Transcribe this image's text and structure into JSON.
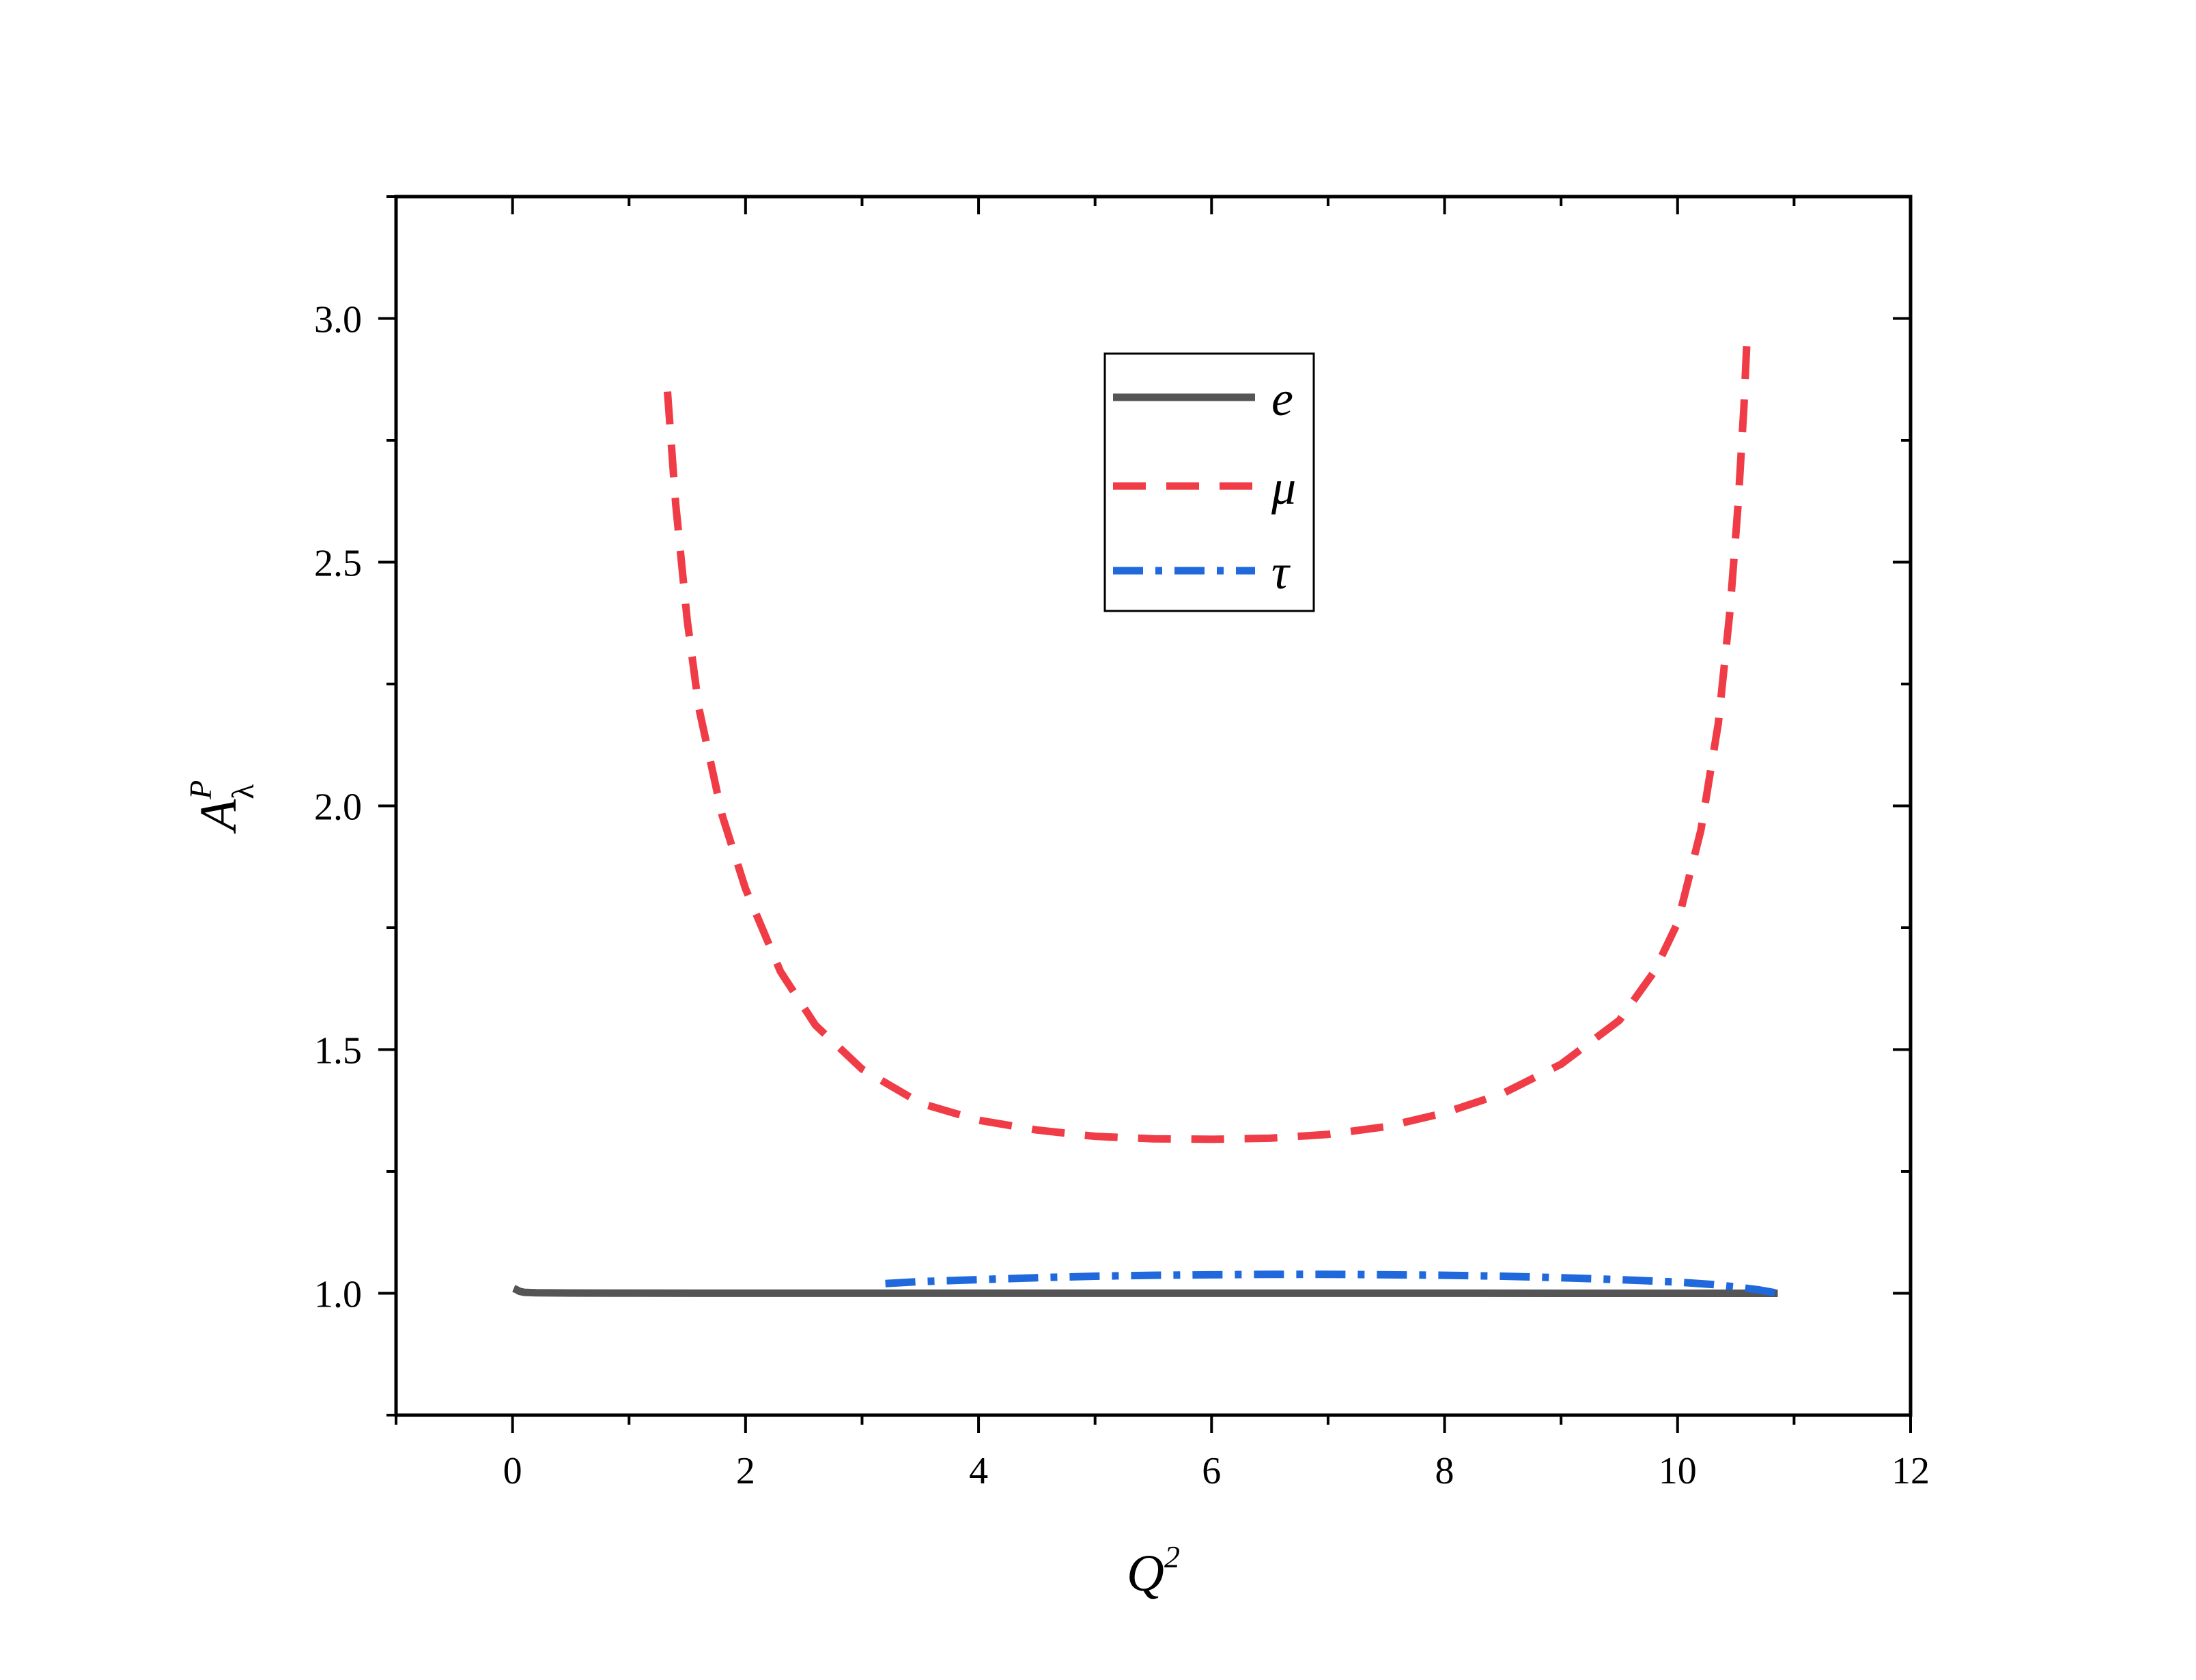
{
  "chart_data": {
    "type": "line",
    "xlabel": "Q",
    "xlabel_sup": "2",
    "ylabel": "A",
    "ylabel_sub": "λ",
    "ylabel_sup": "P",
    "xlim": [
      -1,
      12
    ],
    "ylim": [
      0.75,
      3.25
    ],
    "x_ticks": [
      0,
      2,
      4,
      6,
      8,
      10,
      12
    ],
    "x_tick_labels": [
      "0",
      "2",
      "4",
      "6",
      "8",
      "10",
      "12"
    ],
    "y_ticks": [
      1.0,
      1.5,
      2.0,
      2.5,
      3.0
    ],
    "y_tick_labels": [
      "1.0",
      "1.5",
      "2.0",
      "2.5",
      "3.0"
    ],
    "grid": false,
    "legend_position": "top-center",
    "series": [
      {
        "name": "e",
        "color": "#555555",
        "style": "solid",
        "x": [
          0.01,
          0.03,
          0.06,
          0.1,
          0.2,
          0.5,
          1,
          2,
          4,
          6,
          8,
          10,
          10.8,
          10.86
        ],
        "y": [
          1.01,
          1.008,
          1.004,
          1.002,
          1.001,
          1.0005,
          1.0003,
          1.0002,
          1.0001,
          1.0001,
          1.0001,
          1.0,
          1.0,
          1.0
        ]
      },
      {
        "name": "μ",
        "color": "#f03c46",
        "style": "dashed",
        "x": [
          1.33,
          1.4,
          1.5,
          1.6,
          1.8,
          2.0,
          2.3,
          2.6,
          3.0,
          3.5,
          4.0,
          4.5,
          5.0,
          5.5,
          6.0,
          6.5,
          7.0,
          7.5,
          8.0,
          8.5,
          9.0,
          9.5,
          9.8,
          10.0,
          10.2,
          10.35,
          10.45,
          10.52,
          10.57,
          10.6
        ],
        "y": [
          2.85,
          2.62,
          2.38,
          2.2,
          1.98,
          1.83,
          1.66,
          1.55,
          1.46,
          1.39,
          1.355,
          1.335,
          1.322,
          1.317,
          1.316,
          1.318,
          1.326,
          1.342,
          1.37,
          1.41,
          1.47,
          1.56,
          1.66,
          1.76,
          1.95,
          2.17,
          2.4,
          2.62,
          2.82,
          2.98
        ]
      },
      {
        "name": "τ",
        "color": "#1f69dc",
        "style": "dashdot",
        "x": [
          3.2,
          3.5,
          4.0,
          4.5,
          5.0,
          5.5,
          6.0,
          6.5,
          7.0,
          7.5,
          8.0,
          8.5,
          9.0,
          9.5,
          10.0,
          10.3,
          10.5,
          10.7,
          10.86
        ],
        "y": [
          1.02,
          1.024,
          1.028,
          1.032,
          1.035,
          1.037,
          1.038,
          1.039,
          1.039,
          1.038,
          1.037,
          1.035,
          1.032,
          1.028,
          1.023,
          1.018,
          1.013,
          1.007,
          1.0
        ]
      }
    ]
  }
}
